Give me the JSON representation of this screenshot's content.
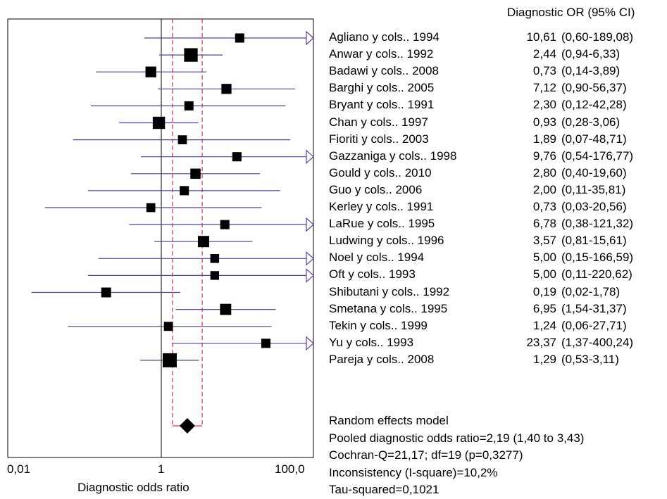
{
  "chart_data": {
    "type": "forest",
    "xlabel": "Diagnostic odds ratio",
    "x_scale": "log10",
    "xlim": [
      0.01,
      100
    ],
    "x_tick_labels": [
      "0,01",
      "1",
      "100,0"
    ],
    "column_header": "Diagnostic OR (95% CI)",
    "reference_line": 1,
    "colors": {
      "ci_line": "#5b3c9e",
      "marker": "#000000",
      "bound_lines": "#e03050"
    },
    "studies": [
      {
        "label": "Agliano y cols.. 1994",
        "or": 10.61,
        "lo": 0.6,
        "hi": 189.08,
        "or_text": "10,61",
        "ci_text": "(0,60-189,08)"
      },
      {
        "label": "Anwar y cols.. 1992",
        "or": 2.44,
        "lo": 0.94,
        "hi": 6.33,
        "or_text": "2,44",
        "ci_text": "(0,94-6,33)"
      },
      {
        "label": "Badawi y cols.. 2008",
        "or": 0.73,
        "lo": 0.14,
        "hi": 3.89,
        "or_text": "0,73",
        "ci_text": "(0,14-3,89)"
      },
      {
        "label": "Barghi y cols.. 2005",
        "or": 7.12,
        "lo": 0.9,
        "hi": 56.37,
        "or_text": "7,12",
        "ci_text": "(0,90-56,37)"
      },
      {
        "label": "Bryant y cols.. 1991",
        "or": 2.3,
        "lo": 0.12,
        "hi": 42.28,
        "or_text": "2,30",
        "ci_text": "(0,12-42,28)"
      },
      {
        "label": "Chan y cols.. 1997",
        "or": 0.93,
        "lo": 0.28,
        "hi": 3.06,
        "or_text": "0,93",
        "ci_text": "(0,28-3,06)"
      },
      {
        "label": "Fioriti y cols.. 2003",
        "or": 1.89,
        "lo": 0.07,
        "hi": 48.71,
        "or_text": "1,89",
        "ci_text": "(0,07-48,71)"
      },
      {
        "label": "Gazzaniga y cols.. 1998",
        "or": 9.76,
        "lo": 0.54,
        "hi": 176.77,
        "or_text": "9,76",
        "ci_text": "(0,54-176,77)"
      },
      {
        "label": "Gould y cols..  2010",
        "or": 2.8,
        "lo": 0.4,
        "hi": 19.6,
        "or_text": "2,80",
        "ci_text": "(0,40-19,60)"
      },
      {
        "label": "Guo y cols.. 2006",
        "or": 2.0,
        "lo": 0.11,
        "hi": 35.81,
        "or_text": "2,00",
        "ci_text": "(0,11-35,81)"
      },
      {
        "label": "Kerley y cols.. 1991",
        "or": 0.73,
        "lo": 0.03,
        "hi": 20.56,
        "or_text": "0,73",
        "ci_text": "(0,03-20,56)"
      },
      {
        "label": "LaRue y cols.. 1995",
        "or": 6.78,
        "lo": 0.38,
        "hi": 121.32,
        "or_text": "6,78",
        "ci_text": "(0,38-121,32)"
      },
      {
        "label": "Ludwing y cols.. 1996",
        "or": 3.57,
        "lo": 0.81,
        "hi": 15.61,
        "or_text": "3,57",
        "ci_text": "(0,81-15,61)"
      },
      {
        "label": "Noel y cols.. 1994",
        "or": 5.0,
        "lo": 0.15,
        "hi": 166.59,
        "or_text": "5,00",
        "ci_text": "(0,15-166,59)"
      },
      {
        "label": "Oft y cols.. 1993",
        "or": 5.0,
        "lo": 0.11,
        "hi": 220.62,
        "or_text": "5,00",
        "ci_text": "(0,11-220,62)"
      },
      {
        "label": "Shibutani y cols.. 1992",
        "or": 0.19,
        "lo": 0.02,
        "hi": 1.78,
        "or_text": "0,19",
        "ci_text": "(0,02-1,78)"
      },
      {
        "label": "Smetana y cols.. 1995",
        "or": 6.95,
        "lo": 1.54,
        "hi": 31.37,
        "or_text": "6,95",
        "ci_text": "(1,54-31,37)"
      },
      {
        "label": "Tekin y cols.. 1999",
        "or": 1.24,
        "lo": 0.06,
        "hi": 27.71,
        "or_text": "1,24",
        "ci_text": "(0,06-27,71)"
      },
      {
        "label": "Yu y cols.. 1993",
        "or": 23.37,
        "lo": 1.37,
        "hi": 400.24,
        "or_text": "23,37",
        "ci_text": "(1,37-400,24)"
      },
      {
        "label": "Pareja y cols.. 2008",
        "or": 1.29,
        "lo": 0.53,
        "hi": 3.11,
        "or_text": "1,29",
        "ci_text": "(0,53-3,11)"
      }
    ],
    "pooled": {
      "or": 2.19,
      "lo": 1.4,
      "hi": 3.43
    },
    "summary_lines": [
      "Random effects model",
      "Pooled diagnostic odds ratio=2,19 (1,40 to 3,43)",
      "Cochran-Q=21,17; df=19 (p=0,3277)",
      "Inconsistency (I-square)=10,2%",
      "Tau-squared=0,1021"
    ]
  }
}
